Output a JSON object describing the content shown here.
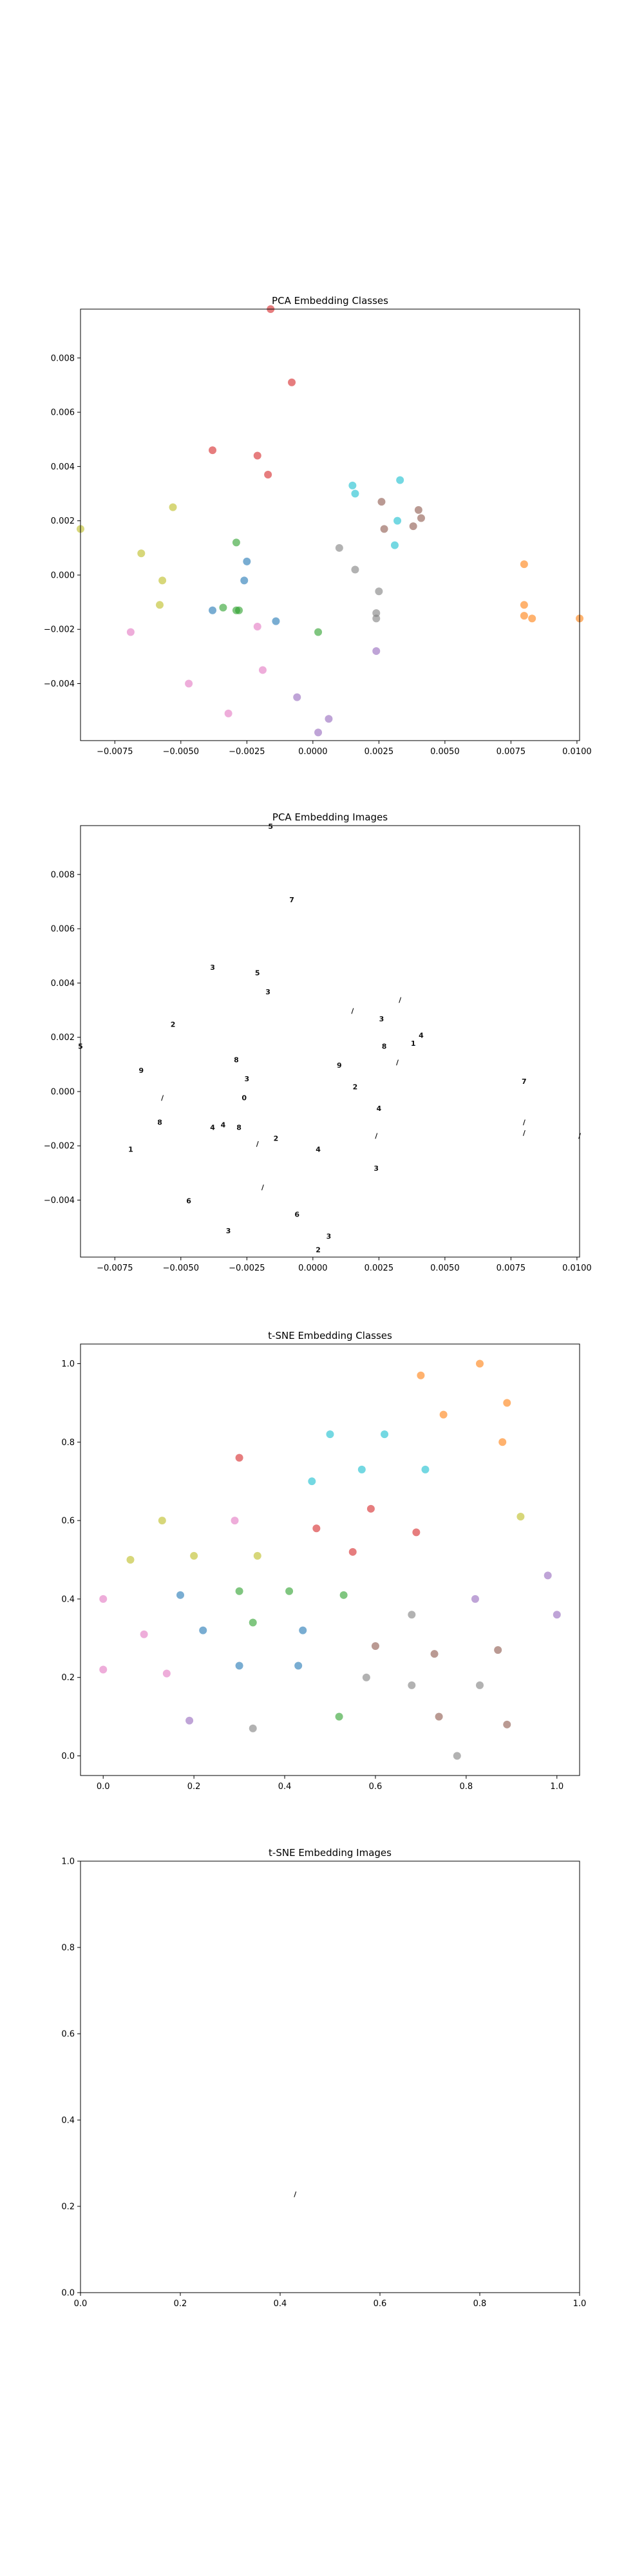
{
  "palette": [
    "#1f77b4",
    "#ff7f0e",
    "#2ca02c",
    "#d62728",
    "#9467bd",
    "#8c564b",
    "#e377c2",
    "#7f7f7f",
    "#bcbd22",
    "#17becf"
  ],
  "chart_data": [
    {
      "type": "scatter",
      "title": "PCA Embedding Classes",
      "xlim": [
        -0.0088,
        0.0101
      ],
      "ylim": [
        -0.0061,
        0.0098
      ],
      "xticks": [
        -0.0075,
        -0.005,
        -0.0025,
        0.0,
        0.0025,
        0.005,
        0.0075,
        0.01
      ],
      "xtick_labels": [
        "−0.0075",
        "−0.0050",
        "−0.0025",
        "0.0000",
        "0.0025",
        "0.0050",
        "0.0075",
        "0.0100"
      ],
      "yticks": [
        -0.004,
        -0.002,
        0.0,
        0.002,
        0.004,
        0.006,
        0.008
      ],
      "ytick_labels": [
        "−0.004",
        "−0.002",
        "0.000",
        "0.002",
        "0.004",
        "0.006",
        "0.008"
      ],
      "series": [
        {
          "color": "#1f77b4",
          "points": [
            [
              -0.0025,
              0.0005
            ],
            [
              -0.0026,
              -0.0002
            ],
            [
              -0.0038,
              -0.0013
            ],
            [
              -0.0014,
              -0.0017
            ]
          ]
        },
        {
          "color": "#ff7f0e",
          "points": [
            [
              0.008,
              0.0004
            ],
            [
              0.008,
              -0.0011
            ],
            [
              0.008,
              -0.0015
            ],
            [
              0.0083,
              -0.0016
            ],
            [
              0.0101,
              -0.0016
            ]
          ]
        },
        {
          "color": "#2ca02c",
          "points": [
            [
              -0.0029,
              0.0012
            ],
            [
              -0.0034,
              -0.0012
            ],
            [
              -0.0028,
              -0.0013
            ],
            [
              -0.0029,
              -0.0013
            ],
            [
              0.0002,
              -0.0021
            ]
          ]
        },
        {
          "color": "#d62728",
          "points": [
            [
              -0.0038,
              0.0046
            ],
            [
              -0.0021,
              0.0044
            ],
            [
              -0.0017,
              0.0037
            ],
            [
              -0.0008,
              0.0071
            ],
            [
              -0.0016,
              0.0098
            ]
          ]
        },
        {
          "color": "#9467bd",
          "points": [
            [
              -0.0006,
              -0.0045
            ],
            [
              0.0006,
              -0.0053
            ],
            [
              0.0002,
              -0.0058
            ],
            [
              0.0024,
              -0.0028
            ]
          ]
        },
        {
          "color": "#8c564b",
          "points": [
            [
              0.0026,
              0.0027
            ],
            [
              0.0027,
              0.0017
            ],
            [
              0.0038,
              0.0018
            ],
            [
              0.0041,
              0.0021
            ],
            [
              0.004,
              0.0024
            ]
          ]
        },
        {
          "color": "#e377c2",
          "points": [
            [
              -0.0069,
              -0.0021
            ],
            [
              -0.0047,
              -0.004
            ],
            [
              -0.0032,
              -0.0051
            ],
            [
              -0.0019,
              -0.0035
            ],
            [
              -0.0021,
              -0.0019
            ]
          ]
        },
        {
          "color": "#7f7f7f",
          "points": [
            [
              0.001,
              0.001
            ],
            [
              0.0016,
              0.0002
            ],
            [
              0.0025,
              -0.0006
            ],
            [
              0.0024,
              -0.0014
            ],
            [
              0.0024,
              -0.0016
            ]
          ]
        },
        {
          "color": "#bcbd22",
          "points": [
            [
              -0.0088,
              0.0017
            ],
            [
              -0.0053,
              0.0025
            ],
            [
              -0.0065,
              0.0008
            ],
            [
              -0.0057,
              -0.0002
            ],
            [
              -0.0058,
              -0.0011
            ]
          ]
        },
        {
          "color": "#17becf",
          "points": [
            [
              0.0015,
              0.0033
            ],
            [
              0.0016,
              0.003
            ],
            [
              0.0033,
              0.0035
            ],
            [
              0.0032,
              0.002
            ],
            [
              0.0031,
              0.0011
            ]
          ]
        }
      ]
    },
    {
      "type": "scatter",
      "title": "PCA Embedding Images",
      "xlim": [
        -0.0088,
        0.0101
      ],
      "ylim": [
        -0.0061,
        0.0098
      ],
      "xticks": [
        -0.0075,
        -0.005,
        -0.0025,
        0.0,
        0.0025,
        0.005,
        0.0075,
        0.01
      ],
      "xtick_labels": [
        "−0.0075",
        "−0.0050",
        "−0.0025",
        "0.0000",
        "0.0025",
        "0.0050",
        "0.0075",
        "0.0100"
      ],
      "yticks": [
        -0.004,
        -0.002,
        0.0,
        0.002,
        0.004,
        0.006,
        0.008
      ],
      "ytick_labels": [
        "−0.004",
        "−0.002",
        "0.000",
        "0.002",
        "0.004",
        "0.006",
        "0.008"
      ],
      "marker_glyphs": true
    },
    {
      "type": "scatter",
      "title": "t-SNE Embedding Classes",
      "xlim": [
        -0.05,
        1.05
      ],
      "ylim": [
        -0.05,
        1.05
      ],
      "xticks": [
        0.0,
        0.2,
        0.4,
        0.6,
        0.8,
        1.0
      ],
      "xtick_labels": [
        "0.0",
        "0.2",
        "0.4",
        "0.6",
        "0.8",
        "1.0"
      ],
      "yticks": [
        0.0,
        0.2,
        0.4,
        0.6,
        0.8,
        1.0
      ],
      "ytick_labels": [
        "0.0",
        "0.2",
        "0.4",
        "0.6",
        "0.8",
        "1.0"
      ],
      "series": [
        {
          "color": "#1f77b4",
          "points": [
            [
              0.17,
              0.41
            ],
            [
              0.22,
              0.32
            ],
            [
              0.3,
              0.23
            ],
            [
              0.43,
              0.23
            ],
            [
              0.44,
              0.32
            ]
          ]
        },
        {
          "color": "#ff7f0e",
          "points": [
            [
              0.7,
              0.97
            ],
            [
              0.75,
              0.87
            ],
            [
              0.83,
              1.0
            ],
            [
              0.89,
              0.9
            ],
            [
              0.88,
              0.8
            ]
          ]
        },
        {
          "color": "#2ca02c",
          "points": [
            [
              0.3,
              0.42
            ],
            [
              0.33,
              0.34
            ],
            [
              0.41,
              0.42
            ],
            [
              0.53,
              0.41
            ],
            [
              0.52,
              0.1
            ]
          ]
        },
        {
          "color": "#d62728",
          "points": [
            [
              0.3,
              0.76
            ],
            [
              0.47,
              0.58
            ],
            [
              0.55,
              0.52
            ],
            [
              0.59,
              0.63
            ],
            [
              0.69,
              0.57
            ]
          ]
        },
        {
          "color": "#9467bd",
          "points": [
            [
              0.19,
              0.09
            ],
            [
              0.82,
              0.4
            ],
            [
              0.98,
              0.46
            ],
            [
              1.0,
              0.36
            ]
          ]
        },
        {
          "color": "#8c564b",
          "points": [
            [
              0.6,
              0.28
            ],
            [
              0.73,
              0.26
            ],
            [
              0.74,
              0.1
            ],
            [
              0.87,
              0.27
            ],
            [
              0.89,
              0.08
            ]
          ]
        },
        {
          "color": "#e377c2",
          "points": [
            [
              0.0,
              0.4
            ],
            [
              0.0,
              0.22
            ],
            [
              0.09,
              0.31
            ],
            [
              0.14,
              0.21
            ],
            [
              0.29,
              0.6
            ]
          ]
        },
        {
          "color": "#7f7f7f",
          "points": [
            [
              0.33,
              0.07
            ],
            [
              0.58,
              0.2
            ],
            [
              0.68,
              0.36
            ],
            [
              0.68,
              0.18
            ],
            [
              0.78,
              0.0
            ],
            [
              0.83,
              0.18
            ]
          ]
        },
        {
          "color": "#bcbd22",
          "points": [
            [
              0.06,
              0.5
            ],
            [
              0.13,
              0.6
            ],
            [
              0.2,
              0.51
            ],
            [
              0.34,
              0.51
            ],
            [
              0.92,
              0.61
            ]
          ]
        },
        {
          "color": "#17becf",
          "points": [
            [
              0.46,
              0.7
            ],
            [
              0.5,
              0.82
            ],
            [
              0.57,
              0.73
            ],
            [
              0.62,
              0.82
            ],
            [
              0.71,
              0.73
            ]
          ]
        }
      ]
    },
    {
      "type": "scatter",
      "title": "t-SNE Embedding Images",
      "xlim": [
        0.0,
        1.0
      ],
      "ylim": [
        0.0,
        1.0
      ],
      "xticks": [
        0.0,
        0.2,
        0.4,
        0.6,
        0.8,
        1.0
      ],
      "xtick_labels": [
        "0.0",
        "0.2",
        "0.4",
        "0.6",
        "0.8",
        "1.0"
      ],
      "yticks": [
        0.0,
        0.2,
        0.4,
        0.6,
        0.8,
        1.0
      ],
      "ytick_labels": [
        "0.0",
        "0.2",
        "0.4",
        "0.6",
        "0.8",
        "1.0"
      ],
      "marker_glyphs": true,
      "points": [
        [
          0.43,
          0.23
        ]
      ]
    }
  ]
}
